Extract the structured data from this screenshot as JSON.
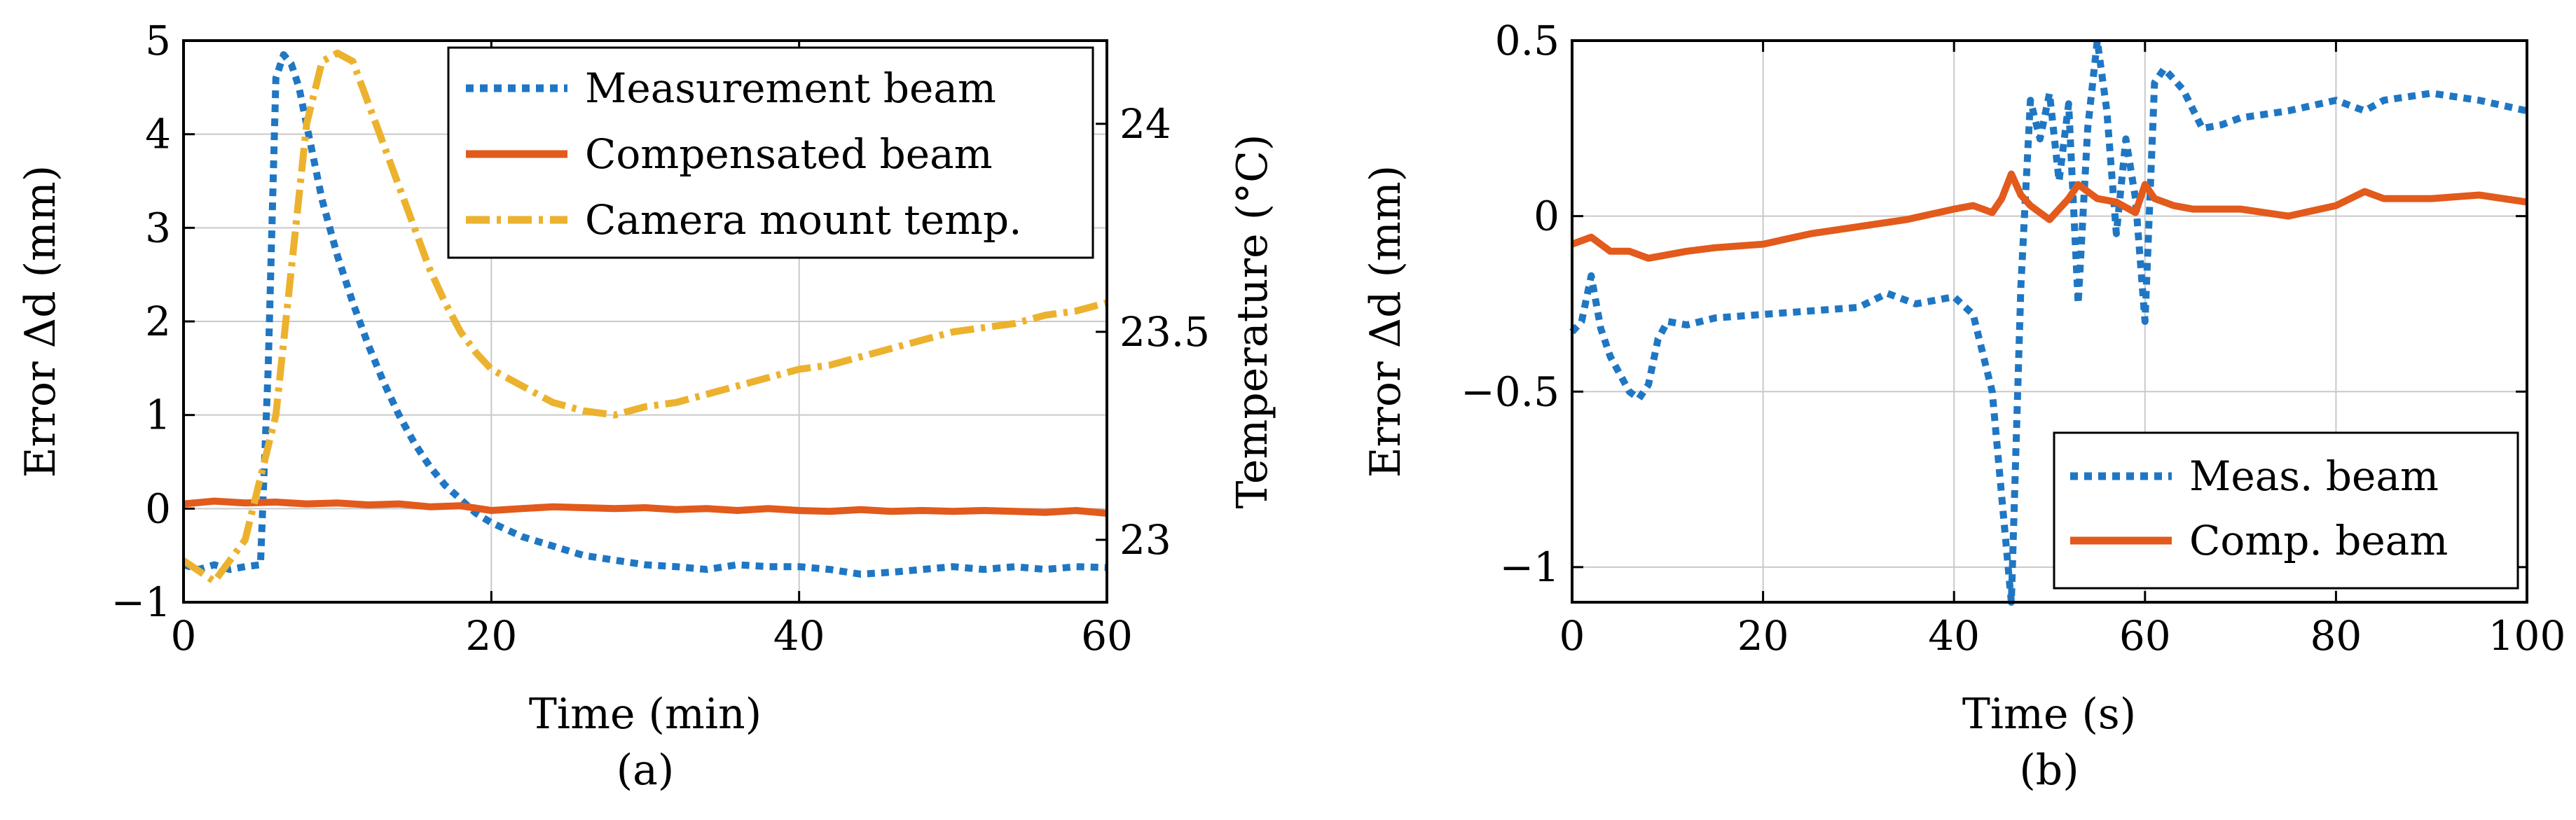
{
  "colors": {
    "measurement": "#1f77c4",
    "compensated": "#e25a1c",
    "temperature": "#ecb22e",
    "axis": "#000000",
    "grid": "#c9c9c9"
  },
  "chart_data": [
    {
      "panel_label": "(a)",
      "panel_letter": "a",
      "type": "line",
      "xlabel": "Time (min)",
      "ylabel": "Error Δd (mm)",
      "y2label": "Temperature (°C)",
      "xlim": [
        0,
        60
      ],
      "ylim": [
        -1,
        5
      ],
      "y2lim": [
        22.85,
        24.2
      ],
      "xticks": [
        0,
        20,
        40,
        60
      ],
      "yticks": [
        -1,
        0,
        1,
        2,
        3,
        4,
        5
      ],
      "y2ticks": [
        23,
        23.5,
        24
      ],
      "grid": true,
      "legend_position": "top-right",
      "series": [
        {
          "name": "Measurement beam",
          "axis": "left",
          "style": "dotted",
          "x": [
            0,
            1,
            2,
            3,
            4,
            5,
            5.5,
            6,
            6.5,
            7,
            7.5,
            8,
            9,
            10,
            11,
            12,
            13,
            14,
            15,
            16,
            17,
            18,
            19,
            20,
            22,
            24,
            26,
            28,
            30,
            32,
            34,
            36,
            38,
            40,
            42,
            44,
            46,
            48,
            50,
            52,
            54,
            56,
            58,
            60
          ],
          "values": [
            -0.6,
            -0.65,
            -0.6,
            -0.65,
            -0.62,
            -0.6,
            1.5,
            4.6,
            4.85,
            4.75,
            4.5,
            4.1,
            3.3,
            2.7,
            2.2,
            1.75,
            1.35,
            1.0,
            0.7,
            0.45,
            0.25,
            0.1,
            -0.05,
            -0.15,
            -0.3,
            -0.4,
            -0.5,
            -0.55,
            -0.6,
            -0.62,
            -0.65,
            -0.6,
            -0.62,
            -0.62,
            -0.65,
            -0.7,
            -0.68,
            -0.65,
            -0.62,
            -0.65,
            -0.62,
            -0.65,
            -0.62,
            -0.63
          ]
        },
        {
          "name": "Compensated beam",
          "axis": "left",
          "style": "solid",
          "x": [
            0,
            2,
            4,
            6,
            8,
            10,
            12,
            14,
            16,
            18,
            20,
            22,
            24,
            26,
            28,
            30,
            32,
            34,
            36,
            38,
            40,
            42,
            44,
            46,
            48,
            50,
            52,
            54,
            56,
            58,
            60
          ],
          "values": [
            0.05,
            0.08,
            0.06,
            0.07,
            0.05,
            0.06,
            0.04,
            0.05,
            0.02,
            0.03,
            -0.02,
            0.0,
            0.02,
            0.01,
            0.0,
            0.01,
            -0.01,
            0.0,
            -0.02,
            0.0,
            -0.02,
            -0.03,
            -0.01,
            -0.03,
            -0.02,
            -0.03,
            -0.02,
            -0.03,
            -0.04,
            -0.02,
            -0.05
          ]
        },
        {
          "name": "Camera mount temp.",
          "axis": "right",
          "style": "dashdot",
          "x": [
            0,
            2,
            4,
            6,
            7,
            8,
            9,
            10,
            11,
            12,
            13,
            14,
            15,
            16,
            17,
            18,
            19,
            20,
            22,
            24,
            26,
            28,
            30,
            32,
            34,
            36,
            38,
            40,
            42,
            44,
            46,
            48,
            50,
            52,
            54,
            56,
            58,
            60
          ],
          "values": [
            22.95,
            22.9,
            23.0,
            23.3,
            23.65,
            24.0,
            24.15,
            24.17,
            24.15,
            24.05,
            23.95,
            23.85,
            23.75,
            23.65,
            23.57,
            23.5,
            23.45,
            23.41,
            23.37,
            23.33,
            23.31,
            23.3,
            23.32,
            23.33,
            23.35,
            23.37,
            23.39,
            23.41,
            23.42,
            23.44,
            23.46,
            23.48,
            23.5,
            23.51,
            23.52,
            23.54,
            23.55,
            23.57
          ]
        }
      ]
    },
    {
      "panel_label": "(b)",
      "panel_letter": "b",
      "type": "line",
      "xlabel": "Time (s)",
      "ylabel": "Error Δd (mm)",
      "xlim": [
        0,
        100
      ],
      "ylim": [
        -1.1,
        0.5
      ],
      "xticks": [
        0,
        20,
        40,
        60,
        80,
        100
      ],
      "yticks": [
        -1,
        -0.5,
        0,
        0.5
      ],
      "grid": true,
      "legend_position": "bottom-right",
      "series": [
        {
          "name": "Meas. beam",
          "style": "dotted",
          "x": [
            0,
            1,
            2,
            3,
            4,
            5,
            6,
            7,
            8,
            9,
            10,
            12,
            15,
            20,
            25,
            30,
            33,
            36,
            40,
            42,
            44,
            45,
            46,
            47,
            48,
            49,
            50,
            51,
            52,
            53,
            54,
            55,
            56,
            57,
            58,
            59,
            60,
            61,
            62,
            64,
            66,
            68,
            70,
            75,
            80,
            83,
            85,
            90,
            95,
            100
          ],
          "values": [
            -0.33,
            -0.3,
            -0.17,
            -0.32,
            -0.4,
            -0.45,
            -0.5,
            -0.52,
            -0.48,
            -0.35,
            -0.3,
            -0.31,
            -0.29,
            -0.28,
            -0.27,
            -0.26,
            -0.22,
            -0.25,
            -0.23,
            -0.28,
            -0.5,
            -0.8,
            -1.1,
            -0.2,
            0.33,
            0.22,
            0.35,
            0.1,
            0.32,
            -0.25,
            0.25,
            0.5,
            0.3,
            -0.05,
            0.22,
            0.05,
            -0.3,
            0.38,
            0.42,
            0.36,
            0.25,
            0.26,
            0.28,
            0.3,
            0.33,
            0.3,
            0.33,
            0.35,
            0.33,
            0.3
          ]
        },
        {
          "name": "Comp. beam",
          "style": "solid",
          "x": [
            0,
            2,
            4,
            6,
            8,
            10,
            12,
            15,
            20,
            25,
            30,
            35,
            40,
            42,
            44,
            45,
            46,
            47,
            48,
            50,
            52,
            53,
            55,
            57,
            59,
            60,
            61,
            63,
            65,
            70,
            75,
            80,
            83,
            85,
            90,
            95,
            100
          ],
          "values": [
            -0.08,
            -0.06,
            -0.1,
            -0.1,
            -0.12,
            -0.11,
            -0.1,
            -0.09,
            -0.08,
            -0.05,
            -0.03,
            -0.01,
            0.02,
            0.03,
            0.01,
            0.05,
            0.12,
            0.06,
            0.03,
            -0.01,
            0.05,
            0.09,
            0.05,
            0.04,
            0.01,
            0.09,
            0.05,
            0.03,
            0.02,
            0.02,
            0.0,
            0.03,
            0.07,
            0.05,
            0.05,
            0.06,
            0.04
          ]
        }
      ]
    }
  ]
}
